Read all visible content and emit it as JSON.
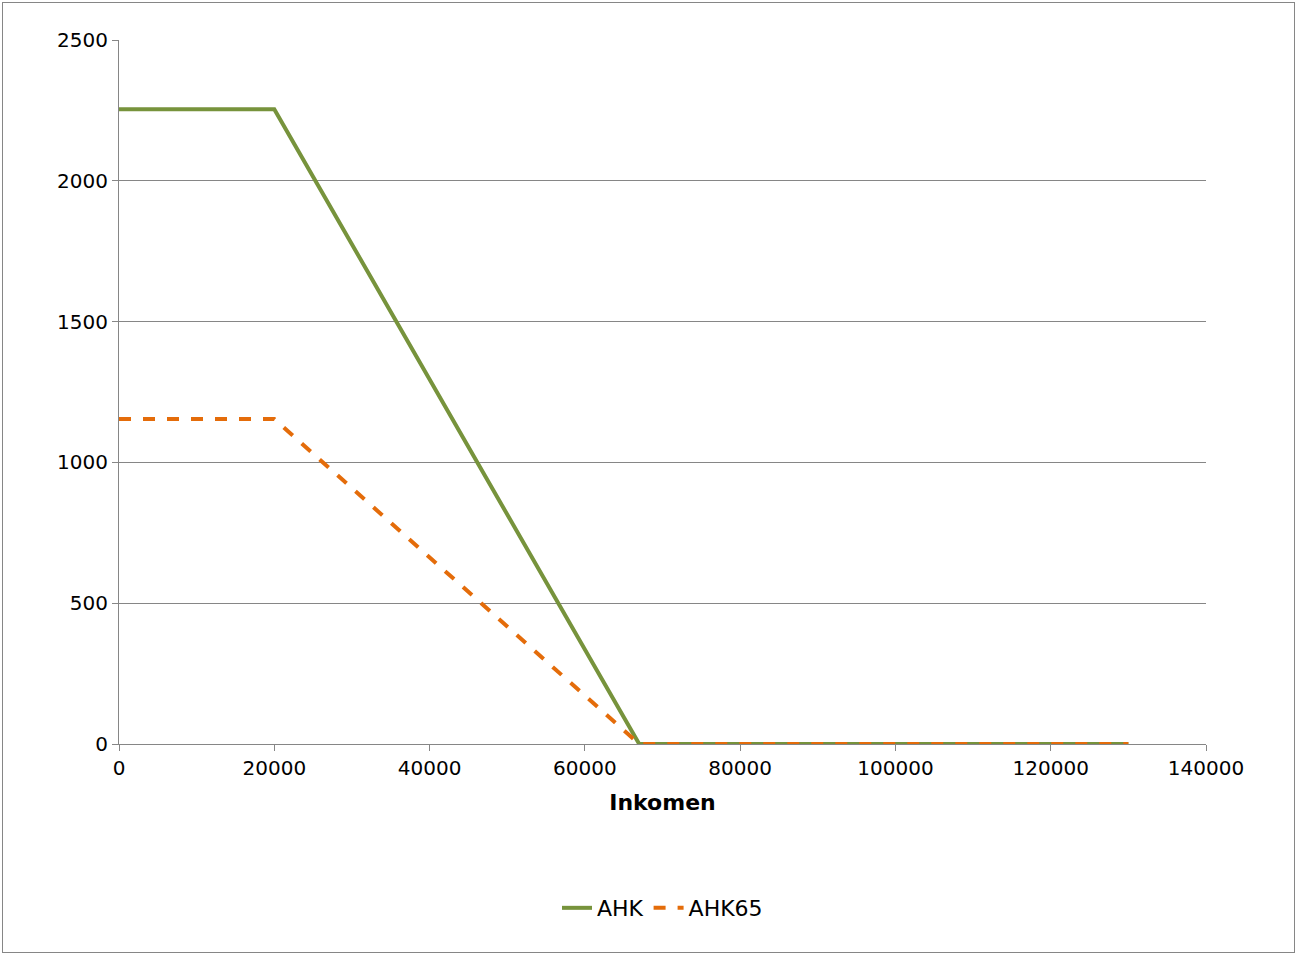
{
  "chart_data": {
    "type": "line",
    "x_label": "Inkomen",
    "series": [
      {
        "name": "AHK",
        "color": "#77933c",
        "line_style": "solid",
        "x": [
          0,
          20000,
          67000,
          130000
        ],
        "values": [
          2254,
          2254,
          0,
          0
        ]
      },
      {
        "name": "AHK65",
        "color": "#e46c0a",
        "line_style": "dash",
        "x": [
          0,
          20000,
          67000,
          130000
        ],
        "values": [
          1154,
          1154,
          0,
          0
        ]
      }
    ],
    "xlim": [
      0,
      140000
    ],
    "xticks": [
      0,
      20000,
      40000,
      60000,
      80000,
      100000,
      120000,
      140000
    ],
    "ylim": [
      0,
      2500
    ],
    "yticks": [
      0,
      500,
      1000,
      1500,
      2000,
      2500
    ],
    "grid": true,
    "legend": "bottom"
  }
}
